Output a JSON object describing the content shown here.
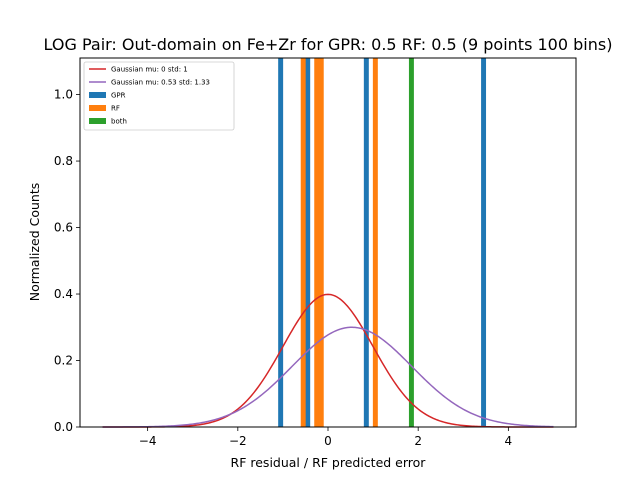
{
  "chart_data": {
    "type": "bar",
    "title": "LOG Pair: Out-domain on Fe+Zr for GPR: 0.5 RF: 0.5 (9 points 100 bins)",
    "xlabel": "RF residual / RF predicted error",
    "ylabel": "Normalized Counts",
    "xlim": [
      -5.5,
      5.5
    ],
    "ylim": [
      0,
      1.11
    ],
    "xticks": [
      -4,
      -2,
      0,
      2,
      4
    ],
    "yticks": [
      0.0,
      0.2,
      0.4,
      0.6,
      0.8,
      1.0
    ],
    "xtick_labels": [
      "−4",
      "−2",
      "0",
      "2",
      "4"
    ],
    "ytick_labels": [
      "0.0",
      "0.2",
      "0.4",
      "0.6",
      "0.8",
      "1.0"
    ],
    "grid": false,
    "legend_position": "top-left",
    "curves": [
      {
        "name": "Gaussian mu: 0 std: 1",
        "mu": 0,
        "std": 1,
        "x_range": [
          -5,
          5
        ],
        "color": "#d62728"
      },
      {
        "name": "Gaussian mu: 0.53 std: 1.33",
        "mu": 0.53,
        "std": 1.33,
        "x_range": [
          -5,
          5
        ],
        "color": "#9467bd"
      }
    ],
    "series": [
      {
        "name": "GPR",
        "color": "#1f77b4",
        "bar_width": 0.11,
        "bars": [
          {
            "x": -1.05,
            "value": 1.11
          },
          {
            "x": -0.45,
            "value": 1.11
          },
          {
            "x": 0.85,
            "value": 1.11
          },
          {
            "x": 3.45,
            "value": 1.11
          }
        ]
      },
      {
        "name": "RF",
        "color": "#ff7f0e",
        "bar_width": 0.11,
        "bars": [
          {
            "x": -0.55,
            "value": 1.11
          },
          {
            "x": -0.25,
            "value": 1.11
          },
          {
            "x": -0.15,
            "value": 1.11
          },
          {
            "x": 1.05,
            "value": 1.11
          }
        ]
      },
      {
        "name": "both",
        "color": "#2ca02c",
        "bar_width": 0.11,
        "bars": [
          {
            "x": 1.85,
            "value": 1.11
          }
        ]
      }
    ]
  }
}
